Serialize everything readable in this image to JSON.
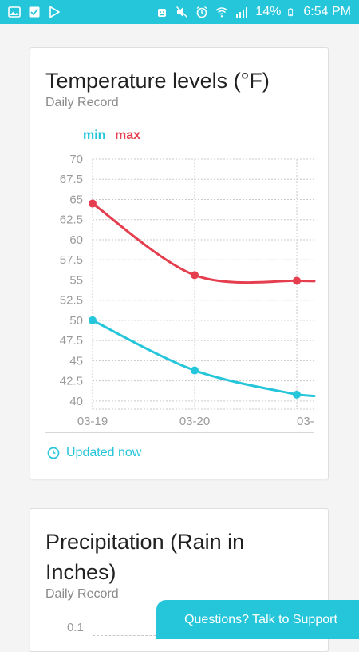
{
  "status_bar": {
    "battery_percent": "14%",
    "time": "6:54 PM",
    "left_icons": [
      "gallery-icon",
      "inbox-check-icon",
      "play-store-icon"
    ],
    "right_icons": [
      "android-robot-icon",
      "mute-icon",
      "alarm-icon",
      "wifi-icon",
      "signal-icon",
      "battery-icon"
    ]
  },
  "temperature_card": {
    "title": "Temperature levels (°F)",
    "subtitle": "Daily Record",
    "updated_label": "Updated now"
  },
  "precip_card": {
    "title": "Precipitation (Rain in Inches)",
    "subtitle": "Daily Record",
    "y_tick_top": "0.1"
  },
  "support_button": {
    "label": "Questions? Talk to Support"
  },
  "colors": {
    "accent": "#26c6da",
    "min_series": "#26c6da",
    "max_series": "#e53f4f",
    "grid": "#c8c8c8",
    "tick_text": "#9a9a9a"
  },
  "chart_data": {
    "type": "line",
    "title": "Temperature levels (°F)",
    "subtitle": "Daily Record",
    "x": [
      "03-19",
      "03-20",
      "03-"
    ],
    "y_ticks": [
      "70",
      "67.5",
      "65",
      "62.5",
      "60",
      "57.5",
      "55",
      "52.5",
      "50",
      "47.5",
      "45",
      "42.5",
      "40"
    ],
    "ylim": [
      39,
      70
    ],
    "grid": true,
    "legend_position": "top-left",
    "series": [
      {
        "name": "min",
        "color": "#26c6da",
        "values": [
          50,
          43.8,
          40.8
        ]
      },
      {
        "name": "max",
        "color": "#e53f4f",
        "values": [
          64.5,
          55.6,
          54.9
        ]
      }
    ]
  }
}
